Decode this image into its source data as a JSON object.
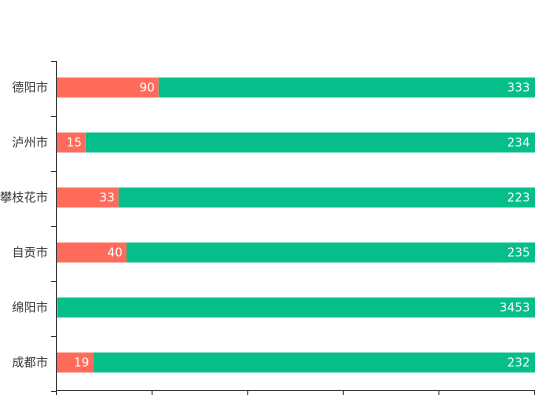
{
  "chart_data": {
    "type": "bar",
    "orientation": "horizontal",
    "stacked": true,
    "normalized": true,
    "categories": [
      "德阳市",
      "泸州市",
      "攀枝花市",
      "自贡市",
      "绵阳市",
      "成都市"
    ],
    "series": [
      {
        "values": [
          90,
          15,
          33,
          40,
          5,
          19
        ]
      },
      {
        "values": [
          333,
          234,
          223,
          235,
          3453,
          232
        ]
      }
    ],
    "colors": [
      "#ff6b5b",
      "#05be8a"
    ],
    "grid": false,
    "legend": "none"
  }
}
